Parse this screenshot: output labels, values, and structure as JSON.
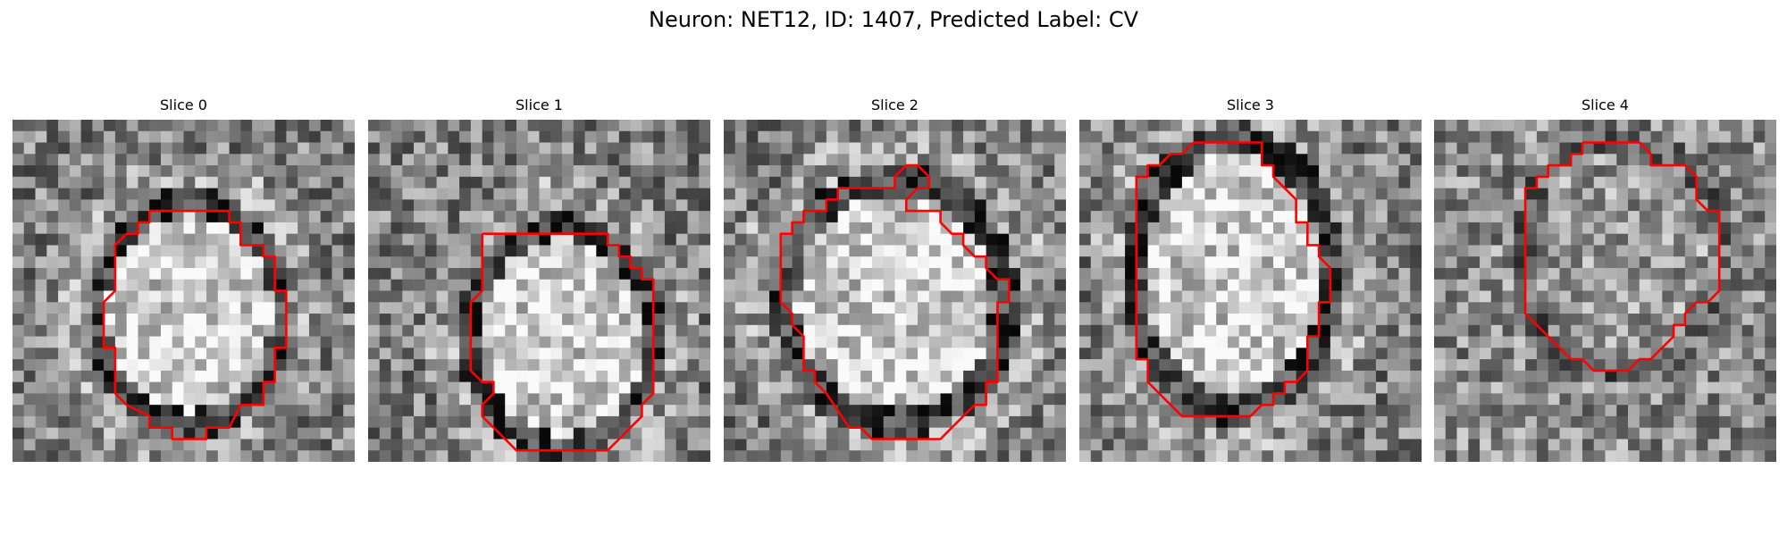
{
  "figure": {
    "title": "Neuron: NET12, ID: 1407, Predicted Label: CV",
    "contour_color": "#ff0000",
    "image_colormap": "gray"
  },
  "slices": [
    {
      "title": "Slice 0",
      "seed": 11,
      "blob": "bright"
    },
    {
      "title": "Slice 1",
      "seed": 23,
      "blob": "bright"
    },
    {
      "title": "Slice 2",
      "seed": 37,
      "blob": "bright"
    },
    {
      "title": "Slice 3",
      "seed": 41,
      "blob": "bright"
    },
    {
      "title": "Slice 4",
      "seed": 59,
      "blob": "mixed"
    }
  ]
}
